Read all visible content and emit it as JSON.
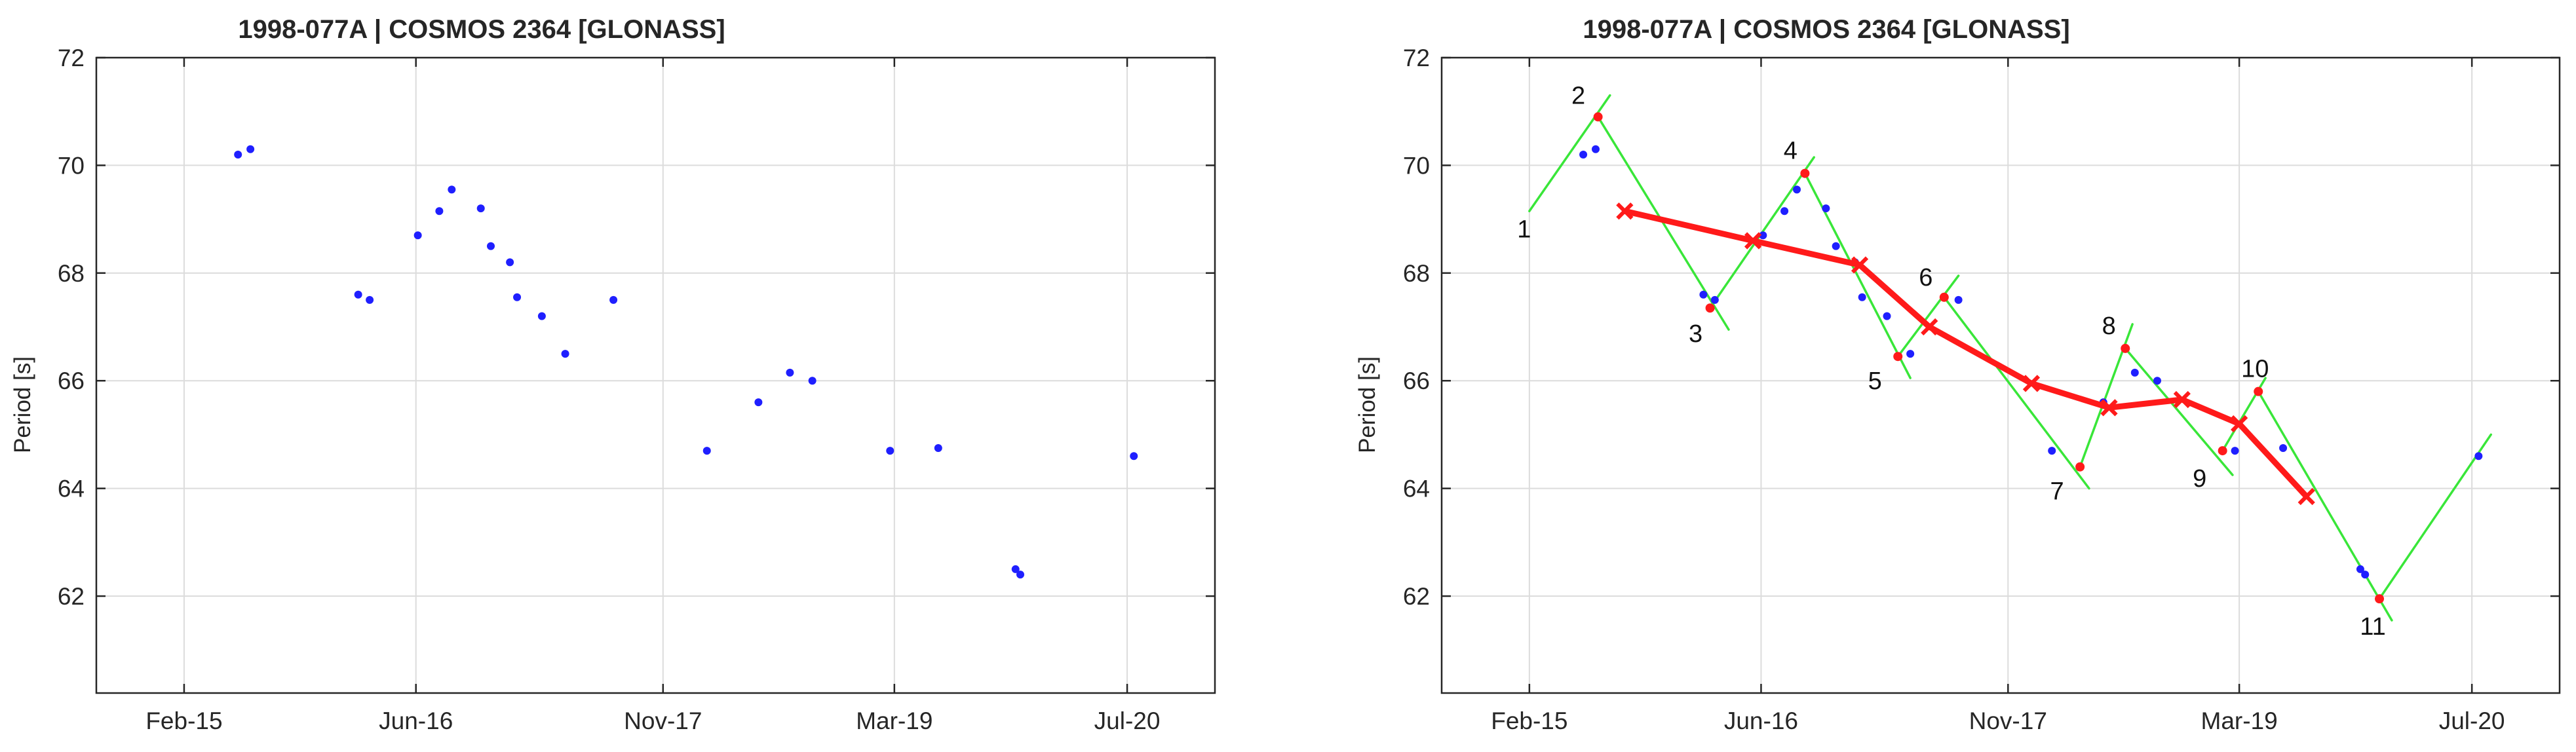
{
  "colors": {
    "background": "#ffffff",
    "axes_face": "#ffffff",
    "axes_edge": "#262626",
    "grid": "#dcdcdc",
    "points": "#1f1fff",
    "fit_path": "#ff1a1a",
    "tangents": "#39e639",
    "text": "#262626"
  },
  "chart_data": [
    {
      "type": "scatter",
      "title": "1998-077A | COSMOS 2364 [GLONASS]",
      "xlabel": "",
      "ylabel": "Period [s]",
      "x_ticks": [
        "Feb-15",
        "Jun-16",
        "Nov-17",
        "Mar-19",
        "Jul-20"
      ],
      "x_tick_dates": [
        "2015-02-01",
        "2016-06-01",
        "2017-11-01",
        "2019-03-01",
        "2020-07-01"
      ],
      "xlim": [
        "2014-08-01",
        "2021-01-01"
      ],
      "y_ticks": [
        62,
        64,
        66,
        68,
        70,
        72
      ],
      "ylim": [
        60.2,
        72
      ],
      "grid": true,
      "series": [
        {
          "marker": "dot",
          "points": [
            {
              "x": "2015-05-25",
              "y": 70.2
            },
            {
              "x": "2015-06-20",
              "y": 70.3
            },
            {
              "x": "2016-02-01",
              "y": 67.6
            },
            {
              "x": "2016-02-25",
              "y": 67.5
            },
            {
              "x": "2016-06-05",
              "y": 68.7
            },
            {
              "x": "2016-07-20",
              "y": 69.15
            },
            {
              "x": "2016-08-15",
              "y": 69.55
            },
            {
              "x": "2016-10-15",
              "y": 69.2
            },
            {
              "x": "2016-11-05",
              "y": 68.5
            },
            {
              "x": "2016-12-15",
              "y": 68.2
            },
            {
              "x": "2016-12-30",
              "y": 67.55
            },
            {
              "x": "2017-02-20",
              "y": 67.2
            },
            {
              "x": "2017-04-10",
              "y": 66.5
            },
            {
              "x": "2017-07-20",
              "y": 67.5
            },
            {
              "x": "2018-02-01",
              "y": 64.7
            },
            {
              "x": "2018-05-20",
              "y": 65.6
            },
            {
              "x": "2018-07-25",
              "y": 66.15
            },
            {
              "x": "2018-09-10",
              "y": 66.0
            },
            {
              "x": "2019-02-20",
              "y": 64.7
            },
            {
              "x": "2019-06-01",
              "y": 64.75
            },
            {
              "x": "2019-11-10",
              "y": 62.5
            },
            {
              "x": "2019-11-20",
              "y": 62.4
            },
            {
              "x": "2020-07-15",
              "y": 64.6
            }
          ]
        }
      ]
    },
    {
      "type": "line",
      "title": "1998-077A | COSMOS 2364 [GLONASS]",
      "xlabel": "",
      "ylabel": "Period [s]",
      "x_ticks": [
        "Feb-15",
        "Jun-16",
        "Nov-17",
        "Mar-19",
        "Jul-20"
      ],
      "x_tick_dates": [
        "2015-02-01",
        "2016-06-01",
        "2017-11-01",
        "2019-03-01",
        "2020-07-01"
      ],
      "xlim": [
        "2014-08-01",
        "2021-01-01"
      ],
      "y_ticks": [
        62,
        64,
        66,
        68,
        70,
        72
      ],
      "ylim": [
        60.2,
        72
      ],
      "grid": true,
      "series": [
        {
          "marker": "dot",
          "points": [
            {
              "x": "2015-05-25",
              "y": 70.2
            },
            {
              "x": "2015-06-20",
              "y": 70.3
            },
            {
              "x": "2016-02-01",
              "y": 67.6
            },
            {
              "x": "2016-02-25",
              "y": 67.5
            },
            {
              "x": "2016-06-05",
              "y": 68.7
            },
            {
              "x": "2016-07-20",
              "y": 69.15
            },
            {
              "x": "2016-08-15",
              "y": 69.55
            },
            {
              "x": "2016-10-15",
              "y": 69.2
            },
            {
              "x": "2016-11-05",
              "y": 68.5
            },
            {
              "x": "2016-12-15",
              "y": 68.2
            },
            {
              "x": "2016-12-30",
              "y": 67.55
            },
            {
              "x": "2017-02-20",
              "y": 67.2
            },
            {
              "x": "2017-04-10",
              "y": 66.5
            },
            {
              "x": "2017-07-20",
              "y": 67.5
            },
            {
              "x": "2018-02-01",
              "y": 64.7
            },
            {
              "x": "2018-05-20",
              "y": 65.6
            },
            {
              "x": "2018-07-25",
              "y": 66.15
            },
            {
              "x": "2018-09-10",
              "y": 66.0
            },
            {
              "x": "2019-02-20",
              "y": 64.7
            },
            {
              "x": "2019-06-01",
              "y": 64.75
            },
            {
              "x": "2019-11-10",
              "y": 62.5
            },
            {
              "x": "2019-11-20",
              "y": 62.4
            },
            {
              "x": "2020-07-15",
              "y": 64.6
            }
          ]
        },
        {
          "marker": "x",
          "points": [
            {
              "x": "2015-08-20",
              "y": 69.15
            },
            {
              "x": "2016-05-15",
              "y": 68.6
            },
            {
              "x": "2016-12-25",
              "y": 68.15
            },
            {
              "x": "2017-05-20",
              "y": 67.0
            },
            {
              "x": "2017-12-20",
              "y": 65.95
            },
            {
              "x": "2018-06-01",
              "y": 65.5
            },
            {
              "x": "2018-11-01",
              "y": 65.65
            },
            {
              "x": "2019-03-01",
              "y": 65.2
            },
            {
              "x": "2019-07-20",
              "y": 63.85
            }
          ]
        }
      ],
      "vertices": [
        {
          "label": "1",
          "x": "2015-02-01",
          "y": 69.15
        },
        {
          "label": "2",
          "x": "2015-06-25",
          "y": 70.9
        },
        {
          "label": "3",
          "x": "2016-02-15",
          "y": 67.35
        },
        {
          "label": "4",
          "x": "2016-09-01",
          "y": 69.85
        },
        {
          "label": "5",
          "x": "2017-03-15",
          "y": 66.45
        },
        {
          "label": "6",
          "x": "2017-06-20",
          "y": 67.55
        },
        {
          "label": "7",
          "x": "2018-04-01",
          "y": 64.4
        },
        {
          "label": "8",
          "x": "2018-07-05",
          "y": 66.6
        },
        {
          "label": "9",
          "x": "2019-01-25",
          "y": 64.7
        },
        {
          "label": "10",
          "x": "2019-04-10",
          "y": 65.8
        },
        {
          "label": "11",
          "x": "2019-12-20",
          "y": 61.95
        }
      ],
      "tangent_segments": [
        [
          {
            "x": "2015-02-01",
            "y": 69.15
          },
          {
            "x": "2015-07-20",
            "y": 71.3
          }
        ],
        [
          {
            "x": "2015-06-25",
            "y": 70.9
          },
          {
            "x": "2016-03-25",
            "y": 66.95
          }
        ],
        [
          {
            "x": "2016-02-15",
            "y": 67.35
          },
          {
            "x": "2016-09-20",
            "y": 70.15
          }
        ],
        [
          {
            "x": "2016-09-01",
            "y": 69.85
          },
          {
            "x": "2017-04-10",
            "y": 66.05
          }
        ],
        [
          {
            "x": "2017-03-15",
            "y": 66.45
          },
          {
            "x": "2017-07-20",
            "y": 67.95
          }
        ],
        [
          {
            "x": "2017-06-20",
            "y": 67.55
          },
          {
            "x": "2018-04-20",
            "y": 64.0
          }
        ],
        [
          {
            "x": "2018-04-01",
            "y": 64.4
          },
          {
            "x": "2018-07-20",
            "y": 67.05
          }
        ],
        [
          {
            "x": "2018-07-05",
            "y": 66.6
          },
          {
            "x": "2019-02-15",
            "y": 64.25
          }
        ],
        [
          {
            "x": "2019-01-25",
            "y": 64.7
          },
          {
            "x": "2019-04-25",
            "y": 66.05
          }
        ],
        [
          {
            "x": "2019-04-10",
            "y": 65.8
          },
          {
            "x": "2020-01-15",
            "y": 61.55
          }
        ],
        [
          {
            "x": "2019-12-20",
            "y": 61.95
          },
          {
            "x": "2020-08-10",
            "y": 65.0
          }
        ]
      ]
    }
  ]
}
